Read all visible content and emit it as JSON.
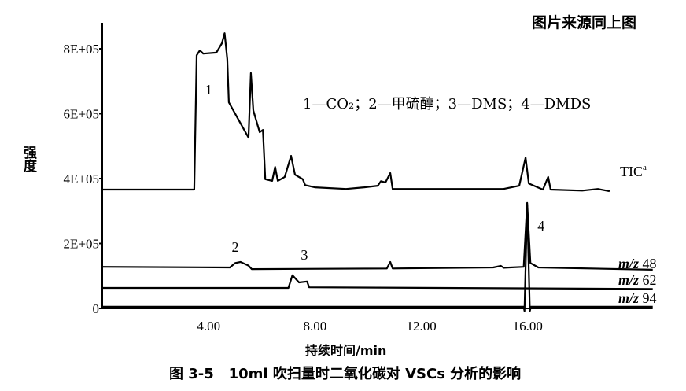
{
  "source_note": "图片来源同上图",
  "caption": "图 3-5   10ml 吹扫量时二氧化碳对 VSCs 分析的影响",
  "chart_data": {
    "type": "line",
    "title": "",
    "xlabel": "持续时间/min",
    "ylabel": "强度",
    "xlim": [
      0,
      20.7
    ],
    "ylim": [
      0,
      880000
    ],
    "x_ticks": [
      4,
      8,
      12,
      16
    ],
    "x_tick_labels": [
      "4.00",
      "8.00",
      "12.00",
      "16.00"
    ],
    "y_ticks": [
      0,
      200000,
      400000,
      600000,
      800000
    ],
    "y_tick_labels": [
      "0",
      "2E+05",
      "4E+05",
      "6E+05",
      "8E+05"
    ],
    "grid": false,
    "legend_text": "1—CO₂；2—甲硫醇；3—DMS；4—DMDS",
    "peak_labels": [
      {
        "label": "1",
        "compound": "CO₂",
        "x": 4.0,
        "y": 660000
      },
      {
        "label": "2",
        "compound": "甲硫醇",
        "x": 5.0,
        "y": 175000
      },
      {
        "label": "3",
        "compound": "DMS",
        "x": 7.6,
        "y": 150000
      },
      {
        "label": "4",
        "compound": "DMDS",
        "x": 16.5,
        "y": 240000
      }
    ],
    "series": [
      {
        "name": "TIC",
        "superscript": "a",
        "points": [
          [
            0,
            366000
          ],
          [
            3.46,
            366000
          ],
          [
            3.55,
            780000
          ],
          [
            3.67,
            795000
          ],
          [
            3.8,
            785000
          ],
          [
            4.29,
            788000
          ],
          [
            4.5,
            817000
          ],
          [
            4.6,
            848000
          ],
          [
            4.7,
            768000
          ],
          [
            4.76,
            635000
          ],
          [
            5.5,
            526000
          ],
          [
            5.59,
            725000
          ],
          [
            5.68,
            610000
          ],
          [
            5.92,
            543000
          ],
          [
            6.04,
            550000
          ],
          [
            6.13,
            398000
          ],
          [
            6.39,
            393000
          ],
          [
            6.5,
            436000
          ],
          [
            6.6,
            393000
          ],
          [
            6.86,
            405000
          ],
          [
            7.1,
            470000
          ],
          [
            7.25,
            412000
          ],
          [
            7.54,
            398000
          ],
          [
            7.63,
            380000
          ],
          [
            7.99,
            373000
          ],
          [
            9.17,
            368000
          ],
          [
            9.85,
            373000
          ],
          [
            10.36,
            378000
          ],
          [
            10.48,
            392000
          ],
          [
            10.65,
            388000
          ],
          [
            10.83,
            417000
          ],
          [
            10.92,
            368000
          ],
          [
            15.09,
            368000
          ],
          [
            15.68,
            378000
          ],
          [
            15.92,
            465000
          ],
          [
            16.04,
            385000
          ],
          [
            16.57,
            366000
          ],
          [
            16.77,
            405000
          ],
          [
            16.86,
            366000
          ],
          [
            18.05,
            363000
          ],
          [
            18.64,
            368000
          ],
          [
            19.08,
            361000
          ]
        ]
      },
      {
        "name": "m/z 48",
        "points": [
          [
            0,
            128000
          ],
          [
            4.8,
            126000
          ],
          [
            5.0,
            140000
          ],
          [
            5.2,
            143000
          ],
          [
            5.5,
            132000
          ],
          [
            5.62,
            121000
          ],
          [
            10.7,
            123000
          ],
          [
            10.83,
            143000
          ],
          [
            10.92,
            123000
          ],
          [
            14.7,
            126000
          ],
          [
            14.99,
            131000
          ],
          [
            15.1,
            125000
          ],
          [
            15.85,
            128000
          ],
          [
            15.98,
            325000
          ],
          [
            16.1,
            140000
          ],
          [
            16.4,
            126000
          ],
          [
            20.7,
            119000
          ]
        ]
      },
      {
        "name": "m/z 62",
        "points": [
          [
            0,
            63000
          ],
          [
            7.0,
            63000
          ],
          [
            7.15,
            102000
          ],
          [
            7.4,
            80000
          ],
          [
            7.7,
            83000
          ],
          [
            7.78,
            65000
          ],
          [
            20.7,
            60000
          ]
        ]
      },
      {
        "name": "m/z 94",
        "points": [
          [
            0,
            5000
          ],
          [
            15.85,
            5000
          ],
          [
            15.88,
            -8000
          ],
          [
            15.98,
            320000
          ],
          [
            16.08,
            -8000
          ],
          [
            16.12,
            5000
          ],
          [
            20.7,
            5000
          ]
        ]
      }
    ]
  }
}
